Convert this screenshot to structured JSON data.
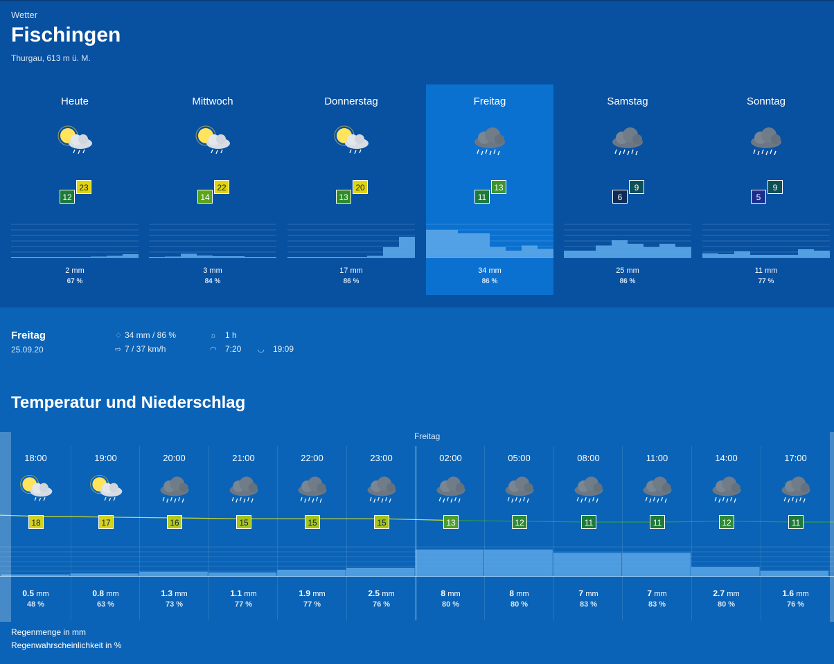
{
  "header": {
    "section": "Wetter",
    "city": "Fischingen",
    "subtitle": "Thurgau, 613 m ü. M."
  },
  "days": [
    {
      "name": "Heute",
      "icon": "sun-cloud-rain-icon",
      "tmin": "12",
      "tmax": "23",
      "tmin_color": "#1e7a3a",
      "tmax_color": "#e0d40e",
      "rain_mm": "2 mm",
      "rain_pct": "67 %",
      "hourly_rain_mm": [
        0,
        0,
        0,
        0,
        0,
        0.3,
        0.5,
        1
      ]
    },
    {
      "name": "Mittwoch",
      "icon": "sun-cloud-rain-icon",
      "tmin": "14",
      "tmax": "22",
      "tmin_color": "#5ba51c",
      "tmax_color": "#e0d40e",
      "rain_mm": "3 mm",
      "rain_pct": "84 %",
      "hourly_rain_mm": [
        0,
        0.3,
        1.1,
        0.6,
        0.4,
        0.4,
        0,
        0
      ]
    },
    {
      "name": "Donnerstag",
      "icon": "sun-cloud-rain-icon",
      "tmin": "13",
      "tmax": "20",
      "tmin_color": "#2f8a2a",
      "tmax_color": "#e0d40e",
      "rain_mm": "17 mm",
      "rain_pct": "86 %",
      "hourly_rain_mm": [
        0,
        0,
        0,
        0,
        0,
        0.5,
        3,
        6
      ]
    },
    {
      "name": "Freitag",
      "icon": "cloud-rain-icon",
      "tmin": "11",
      "tmax": "13",
      "tmin_color": "#1e7a3a",
      "tmax_color": "#3d9530",
      "rain_mm": "34 mm",
      "rain_pct": "86 %",
      "hourly_rain_mm": [
        8,
        8,
        7,
        7,
        3,
        2,
        3.5,
        2.5
      ]
    },
    {
      "name": "Samstag",
      "icon": "cloud-rain-icon",
      "tmin": "6",
      "tmax": "9",
      "tmin_color": "#0f2a55",
      "tmax_color": "#0f4f57",
      "rain_mm": "25 mm",
      "rain_pct": "86 %",
      "hourly_rain_mm": [
        2,
        2,
        3.5,
        5,
        4,
        3,
        4,
        3
      ]
    },
    {
      "name": "Sonntag",
      "icon": "cloud-rain-icon",
      "tmin": "5",
      "tmax": "9",
      "tmin_color": "#1b2e8f",
      "tmax_color": "#0f4f57",
      "rain_mm": "11 mm",
      "rain_pct": "77 %",
      "hourly_rain_mm": [
        1.2,
        1,
        1.8,
        0.8,
        0.8,
        0.8,
        2.4,
        2
      ]
    }
  ],
  "selected_day_index": 3,
  "details": {
    "day": "Freitag",
    "date": "25.09.20",
    "rain": "34 mm / 86 %",
    "wind": "7 / 37 km/h",
    "sunshine": "1 h",
    "sunrise": "7:20",
    "sunset": "19:09",
    "icons": {
      "rain": "droplet-icon",
      "wind": "wind-arrow-icon",
      "sun": "sun-icon",
      "sunrise": "sunrise-icon",
      "sunset": "sunset-icon"
    }
  },
  "section_title": "Temperatur und Niederschlag",
  "day_marker": "Freitag",
  "hours": [
    {
      "time": "18:00",
      "icon": "sun-cloud-rain-icon",
      "temp": "18",
      "temp_color": "#d6d21e",
      "mm": "0.5",
      "pct": "48 %"
    },
    {
      "time": "19:00",
      "icon": "sun-cloud-rain-icon",
      "temp": "17",
      "temp_color": "#d6d21e",
      "mm": "0.8",
      "pct": "63 %"
    },
    {
      "time": "20:00",
      "icon": "cloud-rain-icon",
      "temp": "16",
      "temp_color": "#b6c91c",
      "mm": "1.3",
      "pct": "73 %"
    },
    {
      "time": "21:00",
      "icon": "cloud-rain-icon",
      "temp": "15",
      "temp_color": "#a6c41b",
      "mm": "1.1",
      "pct": "77 %"
    },
    {
      "time": "22:00",
      "icon": "cloud-rain-icon",
      "temp": "15",
      "temp_color": "#a6c41b",
      "mm": "1.9",
      "pct": "77 %"
    },
    {
      "time": "23:00",
      "icon": "cloud-rain-icon",
      "temp": "15",
      "temp_color": "#a6c41b",
      "mm": "2.5",
      "pct": "76 %"
    },
    {
      "time": "02:00",
      "icon": "cloud-rain-icon",
      "temp": "13",
      "temp_color": "#4e9e2c",
      "mm": "8",
      "pct": "80 %"
    },
    {
      "time": "05:00",
      "icon": "cloud-rain-icon",
      "temp": "12",
      "temp_color": "#2f8a35",
      "mm": "8",
      "pct": "80 %"
    },
    {
      "time": "08:00",
      "icon": "cloud-rain-icon",
      "temp": "11",
      "temp_color": "#1e7a3a",
      "mm": "7",
      "pct": "83 %"
    },
    {
      "time": "11:00",
      "icon": "cloud-rain-icon",
      "temp": "11",
      "temp_color": "#1e7a3a",
      "mm": "7",
      "pct": "83 %"
    },
    {
      "time": "14:00",
      "icon": "cloud-rain-icon",
      "temp": "12",
      "temp_color": "#2f8a35",
      "mm": "2.7",
      "pct": "80 %"
    },
    {
      "time": "17:00",
      "icon": "cloud-rain-icon",
      "temp": "11",
      "temp_color": "#1e7a3a",
      "mm": "1.6",
      "pct": "76 %"
    }
  ],
  "unit_mm": "mm",
  "legend": {
    "rain_amount": "Regenmenge in mm",
    "rain_probability": "Regenwahrscheinlichkeit in %"
  },
  "colors": {
    "background": "#0a63b6",
    "top_panel": "#0850a0",
    "selected_day": "#0b71d0",
    "rain_bar": "#5aa6e8",
    "temp_line_warm": "#cfe02a",
    "temp_line_cool": "#2f9a4a"
  }
}
